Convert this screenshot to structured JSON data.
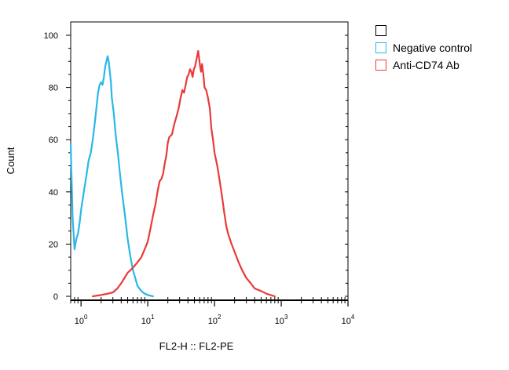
{
  "chart_data": {
    "type": "line",
    "x_scale": "log",
    "xlim": [
      0.7,
      10000
    ],
    "ylim": [
      0,
      100
    ],
    "xlabel": "FL2-H :: FL2-PE",
    "ylabel": "Count",
    "y_ticks": [
      0,
      20,
      40,
      60,
      80,
      100
    ],
    "x_ticks": [
      {
        "base": "10",
        "exp": "0",
        "value": 1
      },
      {
        "base": "10",
        "exp": "1",
        "value": 10
      },
      {
        "base": "10",
        "exp": "2",
        "value": 100
      },
      {
        "base": "10",
        "exp": "3",
        "value": 1000
      },
      {
        "base": "10",
        "exp": "4",
        "value": 10000
      }
    ],
    "series": [
      {
        "name": "Negative control",
        "color": "#29b8e6",
        "points": [
          [
            0.7,
            58
          ],
          [
            0.75,
            30
          ],
          [
            0.8,
            18
          ],
          [
            0.85,
            22
          ],
          [
            0.9,
            24
          ],
          [
            0.95,
            28
          ],
          [
            1.0,
            33
          ],
          [
            1.1,
            40
          ],
          [
            1.2,
            46
          ],
          [
            1.3,
            52
          ],
          [
            1.4,
            55
          ],
          [
            1.5,
            60
          ],
          [
            1.6,
            66
          ],
          [
            1.7,
            72
          ],
          [
            1.8,
            78
          ],
          [
            1.9,
            81
          ],
          [
            2.0,
            82
          ],
          [
            2.1,
            81
          ],
          [
            2.2,
            84
          ],
          [
            2.3,
            88
          ],
          [
            2.4,
            90
          ],
          [
            2.5,
            92
          ],
          [
            2.6,
            90
          ],
          [
            2.7,
            86
          ],
          [
            2.8,
            82
          ],
          [
            2.9,
            76
          ],
          [
            3.1,
            70
          ],
          [
            3.3,
            62
          ],
          [
            3.6,
            54
          ],
          [
            3.9,
            45
          ],
          [
            4.2,
            38
          ],
          [
            4.6,
            30
          ],
          [
            5.0,
            22
          ],
          [
            5.5,
            15
          ],
          [
            6.0,
            10
          ],
          [
            6.5,
            7
          ],
          [
            7.0,
            4
          ],
          [
            8.0,
            2
          ],
          [
            9.0,
            1
          ],
          [
            10,
            0.5
          ],
          [
            12,
            0
          ]
        ]
      },
      {
        "name": "Anti-CD74 Ab",
        "color": "#e83a3a",
        "points": [
          [
            1.5,
            0
          ],
          [
            2.0,
            0.5
          ],
          [
            2.5,
            1
          ],
          [
            3.0,
            1.5
          ],
          [
            3.5,
            3
          ],
          [
            4.0,
            5
          ],
          [
            5.0,
            9
          ],
          [
            6.0,
            11
          ],
          [
            7.0,
            13
          ],
          [
            8.0,
            15
          ],
          [
            9.0,
            18
          ],
          [
            10,
            21
          ],
          [
            11,
            26
          ],
          [
            12,
            31
          ],
          [
            13,
            35
          ],
          [
            14,
            40
          ],
          [
            15,
            44
          ],
          [
            16,
            45
          ],
          [
            17,
            47
          ],
          [
            18,
            51
          ],
          [
            19,
            54
          ],
          [
            20,
            59
          ],
          [
            21,
            61
          ],
          [
            23,
            62
          ],
          [
            25,
            66
          ],
          [
            27,
            69
          ],
          [
            29,
            72
          ],
          [
            31,
            76
          ],
          [
            33,
            79
          ],
          [
            35,
            78
          ],
          [
            37,
            81
          ],
          [
            39,
            84
          ],
          [
            41,
            85
          ],
          [
            43,
            87
          ],
          [
            45,
            86
          ],
          [
            47,
            84
          ],
          [
            49,
            87
          ],
          [
            51,
            88
          ],
          [
            53,
            90
          ],
          [
            55,
            92
          ],
          [
            57,
            94
          ],
          [
            59,
            91
          ],
          [
            61,
            88
          ],
          [
            63,
            86
          ],
          [
            65,
            89
          ],
          [
            68,
            85
          ],
          [
            71,
            80
          ],
          [
            75,
            79
          ],
          [
            80,
            76
          ],
          [
            85,
            72
          ],
          [
            90,
            64
          ],
          [
            95,
            60
          ],
          [
            100,
            55
          ],
          [
            110,
            50
          ],
          [
            120,
            44
          ],
          [
            130,
            38
          ],
          [
            140,
            32
          ],
          [
            150,
            27
          ],
          [
            160,
            24
          ],
          [
            180,
            20
          ],
          [
            200,
            17
          ],
          [
            230,
            13
          ],
          [
            260,
            10
          ],
          [
            300,
            7
          ],
          [
            350,
            5
          ],
          [
            400,
            3
          ],
          [
            500,
            2
          ],
          [
            600,
            1
          ],
          [
            800,
            0
          ]
        ]
      }
    ]
  },
  "legend": {
    "items": [
      {
        "label": "",
        "color": "#000000"
      },
      {
        "label": "Negative control",
        "color": "#29b8e6"
      },
      {
        "label": "Anti-CD74 Ab",
        "color": "#e83a3a"
      }
    ]
  }
}
